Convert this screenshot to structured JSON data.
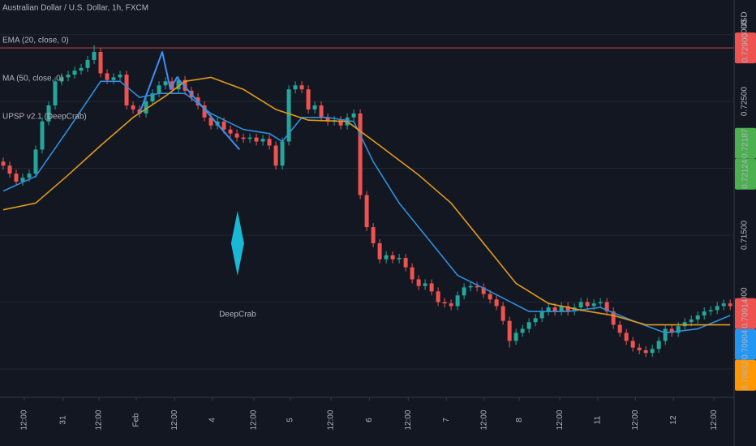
{
  "chart_data": {
    "type": "candlestick",
    "title": "Australian Dollar / U.S. Dollar, 1h, FXCM",
    "currency": "USD",
    "up_color": "#26a69a",
    "down_color": "#ef5350",
    "open": [
      0.7205,
      0.7202,
      0.7196,
      0.719,
      0.7193,
      0.7196,
      0.7214,
      0.7235,
      0.7247,
      0.7265,
      0.7268,
      0.727,
      0.7273,
      0.7275,
      0.7281,
      0.7287,
      0.7271,
      0.7266,
      0.7268,
      0.727,
      0.7247,
      0.7244,
      0.7241,
      0.725,
      0.7256,
      0.7262,
      0.7265,
      0.7259,
      0.7266,
      0.7258,
      0.7253,
      0.7247,
      0.7238,
      0.7232,
      0.7235,
      0.7229,
      0.7226,
      0.7223,
      0.7222,
      0.7223,
      0.722,
      0.7222,
      0.7217,
      0.7202,
      0.722,
      0.7259,
      0.7262,
      0.7259,
      0.7244,
      0.7247,
      0.7238,
      0.7235,
      0.7236,
      0.7232,
      0.7238,
      0.7241,
      0.718,
      0.7156,
      0.7144,
      0.7132,
      0.7135,
      0.7132,
      0.7133,
      0.7126,
      0.7117,
      0.7112,
      0.7114,
      0.7108,
      0.71,
      0.7099,
      0.7097,
      0.7105,
      0.7111,
      0.7112,
      0.7111,
      0.7106,
      0.7102,
      0.7097,
      0.7086,
      0.7071,
      0.7077,
      0.708,
      0.7085,
      0.7088,
      0.7093,
      0.7096,
      0.7093,
      0.7097,
      0.7093,
      0.7096,
      0.71,
      0.7097,
      0.7099,
      0.71,
      0.7093,
      0.7083,
      0.7077,
      0.7071,
      0.7066,
      0.7064,
      0.7062,
      0.7065,
      0.7071,
      0.708,
      0.7077,
      0.7082,
      0.7085,
      0.7087,
      0.709,
      0.7093,
      0.7094,
      0.7097,
      0.7099
    ],
    "high": [
      0.7208,
      0.7205,
      0.7199,
      0.7196,
      0.7199,
      0.7217,
      0.7238,
      0.725,
      0.7268,
      0.7271,
      0.7273,
      0.7276,
      0.7278,
      0.7284,
      0.7292,
      0.729,
      0.7274,
      0.7271,
      0.7273,
      0.7273,
      0.725,
      0.7247,
      0.7253,
      0.7259,
      0.7265,
      0.7268,
      0.7268,
      0.7269,
      0.7269,
      0.7261,
      0.7256,
      0.725,
      0.7241,
      0.7238,
      0.7238,
      0.7232,
      0.7229,
      0.7226,
      0.7226,
      0.7226,
      0.7225,
      0.7225,
      0.722,
      0.7223,
      0.7262,
      0.7265,
      0.7265,
      0.7262,
      0.725,
      0.725,
      0.7241,
      0.7239,
      0.7239,
      0.7241,
      0.7244,
      0.7244,
      0.7183,
      0.7159,
      0.7147,
      0.7138,
      0.7138,
      0.7136,
      0.7136,
      0.7129,
      0.712,
      0.7117,
      0.7117,
      0.7111,
      0.7103,
      0.7102,
      0.7108,
      0.7114,
      0.7115,
      0.7115,
      0.7114,
      0.7109,
      0.7105,
      0.71,
      0.7089,
      0.708,
      0.7083,
      0.7088,
      0.7091,
      0.7096,
      0.7099,
      0.7099,
      0.71,
      0.71,
      0.7099,
      0.7103,
      0.7103,
      0.7102,
      0.7103,
      0.7103,
      0.7096,
      0.7086,
      0.708,
      0.7074,
      0.7069,
      0.7067,
      0.7068,
      0.7074,
      0.7083,
      0.7083,
      0.7085,
      0.7088,
      0.709,
      0.7093,
      0.7096,
      0.7097,
      0.71,
      0.7102,
      0.7102
    ],
    "low": [
      0.7199,
      0.7193,
      0.7187,
      0.7187,
      0.719,
      0.7193,
      0.7211,
      0.7232,
      0.7244,
      0.7262,
      0.7265,
      0.7267,
      0.727,
      0.7272,
      0.7278,
      0.7268,
      0.7263,
      0.7263,
      0.7265,
      0.7244,
      0.7241,
      0.7238,
      0.7238,
      0.7247,
      0.7253,
      0.7259,
      0.7256,
      0.7256,
      0.7255,
      0.725,
      0.7244,
      0.7235,
      0.7229,
      0.7229,
      0.7226,
      0.7223,
      0.722,
      0.7219,
      0.7219,
      0.7217,
      0.7217,
      0.7214,
      0.7199,
      0.7199,
      0.7217,
      0.7256,
      0.7256,
      0.7241,
      0.7241,
      0.7235,
      0.7232,
      0.7232,
      0.7229,
      0.7229,
      0.7235,
      0.7177,
      0.7153,
      0.7141,
      0.7129,
      0.7129,
      0.7129,
      0.7129,
      0.7123,
      0.7114,
      0.7109,
      0.7109,
      0.7105,
      0.7097,
      0.7096,
      0.7094,
      0.7094,
      0.7102,
      0.7108,
      0.7108,
      0.7103,
      0.7099,
      0.7094,
      0.7083,
      0.7066,
      0.7068,
      0.7074,
      0.7077,
      0.7082,
      0.7085,
      0.709,
      0.709,
      0.709,
      0.709,
      0.709,
      0.7093,
      0.7094,
      0.7094,
      0.7096,
      0.709,
      0.708,
      0.7074,
      0.7068,
      0.7063,
      0.7061,
      0.7059,
      0.7059,
      0.7062,
      0.7068,
      0.7074,
      0.7074,
      0.7079,
      0.7082,
      0.7084,
      0.7087,
      0.709,
      0.7091,
      0.7094,
      0.7094
    ],
    "close": [
      0.7202,
      0.7196,
      0.719,
      0.7193,
      0.7196,
      0.7214,
      0.7235,
      0.7247,
      0.7265,
      0.7268,
      0.727,
      0.7273,
      0.7275,
      0.7281,
      0.7287,
      0.7271,
      0.7266,
      0.7268,
      0.727,
      0.7247,
      0.7244,
      0.7241,
      0.725,
      0.7256,
      0.7262,
      0.7265,
      0.7259,
      0.7266,
      0.7258,
      0.7253,
      0.7247,
      0.7238,
      0.7232,
      0.7235,
      0.7229,
      0.7226,
      0.7223,
      0.7222,
      0.7223,
      0.722,
      0.7222,
      0.7217,
      0.7202,
      0.722,
      0.7259,
      0.7262,
      0.7259,
      0.7244,
      0.7247,
      0.7238,
      0.7235,
      0.7236,
      0.7232,
      0.7238,
      0.7241,
      0.718,
      0.7156,
      0.7144,
      0.7132,
      0.7135,
      0.7132,
      0.7133,
      0.7126,
      0.7117,
      0.7112,
      0.7114,
      0.7108,
      0.71,
      0.7099,
      0.7097,
      0.7105,
      0.7111,
      0.7112,
      0.7111,
      0.7106,
      0.7102,
      0.7097,
      0.7086,
      0.7071,
      0.7077,
      0.708,
      0.7085,
      0.7088,
      0.7093,
      0.7096,
      0.7093,
      0.7097,
      0.7093,
      0.7096,
      0.71,
      0.7097,
      0.7099,
      0.71,
      0.7093,
      0.7083,
      0.7077,
      0.7071,
      0.7066,
      0.7064,
      0.7062,
      0.7065,
      0.7071,
      0.708,
      0.7077,
      0.7082,
      0.7085,
      0.7087,
      0.709,
      0.7093,
      0.7094,
      0.7097,
      0.7099,
      0.7097
    ],
    "series": [
      {
        "name": "EMA (20, close, 0)",
        "color": "#2f8fdc",
        "x": [
          0,
          5,
          10,
          15,
          18,
          21,
          24,
          28,
          32,
          37,
          41,
          43,
          46,
          50,
          54,
          57,
          61,
          65,
          70,
          75,
          81,
          87,
          92,
          97,
          102,
          107,
          112
        ],
        "values": [
          0.7183,
          0.7194,
          0.7229,
          0.7265,
          0.7265,
          0.7253,
          0.7256,
          0.7256,
          0.7241,
          0.7229,
          0.7226,
          0.722,
          0.7238,
          0.7238,
          0.7235,
          0.7205,
          0.7174,
          0.715,
          0.712,
          0.7108,
          0.7093,
          0.7093,
          0.7096,
          0.7086,
          0.7077,
          0.708,
          0.709
        ]
      },
      {
        "name": "MA (50, close, 0)",
        "color": "#e09a1c",
        "x": [
          0,
          5,
          10,
          15,
          20,
          25,
          28,
          32,
          37,
          42,
          47,
          53,
          58,
          64,
          69,
          74,
          79,
          84,
          89,
          94,
          99,
          106,
          112
        ],
        "values": [
          0.7169,
          0.7174,
          0.7195,
          0.7217,
          0.7238,
          0.7254,
          0.7265,
          0.7268,
          0.7259,
          0.7244,
          0.7236,
          0.7235,
          0.7217,
          0.7195,
          0.7174,
          0.7144,
          0.7114,
          0.7099,
          0.7094,
          0.709,
          0.7083,
          0.7083,
          0.7083
        ]
      }
    ],
    "indicator": "UPSP v2.1 (DeepCrab)",
    "zigzag": {
      "color": "#3d8ef0",
      "x": [
        21,
        24.5,
        25.75,
        26.75,
        36.4
      ],
      "values": [
        0.7241,
        0.7287,
        0.7259,
        0.7268,
        0.7214
      ]
    },
    "pattern": {
      "label": "DeepCrab",
      "color": "#1ab8d4",
      "x": 36.1,
      "y": 0.7144
    },
    "hline": {
      "value": 0.729,
      "color": "#8a3436"
    },
    "price_tags": [
      {
        "value": 0.729,
        "label": "0.72900",
        "color": "#ef5350"
      },
      {
        "value": 0.72187,
        "label": "0.72187",
        "color": "#4caf50"
      },
      {
        "value": 0.72124,
        "label": "0.72124",
        "color": "#4caf50"
      },
      {
        "value": 0.70914,
        "label": "0.70914",
        "color": "#ef5350"
      },
      {
        "value": 0.70904,
        "label": "0.70904",
        "color": "#2196f3"
      },
      {
        "value": 0.70832,
        "label": "0.70832",
        "color": "#ff9800"
      }
    ],
    "xlim": [
      -0.5,
      112.6
    ],
    "xticks": [
      {
        "value": 3.25,
        "label": "12:00"
      },
      {
        "value": 9.25,
        "label": "31"
      },
      {
        "value": 14.75,
        "label": "12:00"
      },
      {
        "value": 20.5,
        "label": "Feb"
      },
      {
        "value": 26.4,
        "label": "12:00"
      },
      {
        "value": 32.25,
        "label": "4"
      },
      {
        "value": 38.6,
        "label": "12:00"
      },
      {
        "value": 44.25,
        "label": "5"
      },
      {
        "value": 50.5,
        "label": "12:00"
      },
      {
        "value": 56.4,
        "label": "6"
      },
      {
        "value": 62.4,
        "label": "12:00"
      },
      {
        "value": 68.25,
        "label": "7"
      },
      {
        "value": 74.1,
        "label": "12:00"
      },
      {
        "value": 79.5,
        "label": "8"
      },
      {
        "value": 85.75,
        "label": "12:00"
      },
      {
        "value": 91.6,
        "label": "11"
      },
      {
        "value": 97.4,
        "label": "12:00"
      },
      {
        "value": 103.25,
        "label": "12"
      },
      {
        "value": 109.5,
        "label": "12:00"
      }
    ],
    "ylim": [
      0.70288,
      0.73258
    ],
    "yticks": [
      {
        "value": 0.73,
        "label": "0.73000"
      },
      {
        "value": 0.725,
        "label": "0.72500"
      },
      {
        "value": 0.72,
        "label": "0.72000"
      },
      {
        "value": 0.715,
        "label": "0.71500"
      },
      {
        "value": 0.71,
        "label": "0.71000"
      },
      {
        "value": 0.705,
        "label": "0.70500"
      }
    ],
    "grid": true
  }
}
